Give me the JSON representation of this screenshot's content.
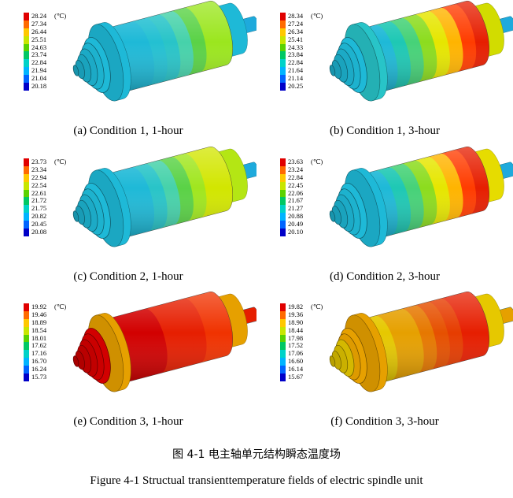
{
  "unit": "(℃)",
  "legend_colors": [
    "#e00000",
    "#ff6a00",
    "#ffc800",
    "#c8e600",
    "#5ad200",
    "#00c864",
    "#00d2c8",
    "#00b4ff",
    "#0064ff",
    "#0000c8"
  ],
  "panels": [
    {
      "caption": "(a) Condition 1, 1-hour",
      "legend": [
        "28.24",
        "27.34",
        "26.44",
        "25.51",
        "24.63",
        "23.74",
        "22.84",
        "21.94",
        "21.04",
        "20.18"
      ],
      "rings": [
        "#1eb9d7",
        "#1eb9d7",
        "#23c0d2",
        "#28c4c8",
        "#46d2aa",
        "#5ad246",
        "#9be61e",
        "#9be61e"
      ],
      "bearing_a": "#1eb9d7",
      "bearing_b": "#1eb9d7"
    },
    {
      "caption": "(b) Condition 1, 3-hour",
      "legend": [
        "28.34",
        "27.24",
        "26.34",
        "25.41",
        "24.33",
        "23.84",
        "22.84",
        "21.64",
        "21.14",
        "20.25"
      ],
      "rings": [
        "#1eb9d7",
        "#1ec8b4",
        "#46d278",
        "#8cdc1e",
        "#e6e600",
        "#ffb400",
        "#ff3c00",
        "#e61e00"
      ],
      "bearing_a": "#28c4c8",
      "bearing_b": "#d2dc00"
    },
    {
      "caption": "(c) Condition 2, 1-hour",
      "legend": [
        "23.73",
        "23.34",
        "22.94",
        "22.54",
        "22.61",
        "21.72",
        "21.75",
        "20.82",
        "20.45",
        "20.08"
      ],
      "rings": [
        "#1eb9d7",
        "#1eb9d7",
        "#28c4c8",
        "#46d2aa",
        "#5ad246",
        "#a0e61e",
        "#d2e600",
        "#d2e600"
      ],
      "bearing_a": "#1eb9d7",
      "bearing_b": "#b4e614"
    },
    {
      "caption": "(d) Condition 2, 3-hour",
      "legend": [
        "23.63",
        "23.24",
        "22.84",
        "22.45",
        "22.06",
        "21.67",
        "21.27",
        "20.88",
        "20.49",
        "20.10"
      ],
      "rings": [
        "#1eb9d7",
        "#1ec8b4",
        "#46d278",
        "#8cdc1e",
        "#e6e600",
        "#ffb400",
        "#ff3c00",
        "#e61e00"
      ],
      "bearing_a": "#1eb9d7",
      "bearing_b": "#e6dc00"
    },
    {
      "caption": "(e) Condition 3, 1-hour",
      "legend": [
        "19.92",
        "19.46",
        "18.89",
        "18.54",
        "18.01",
        "17.62",
        "17.16",
        "16.70",
        "16.24",
        "15.73"
      ],
      "rings": [
        "#d20000",
        "#d20000",
        "#d20000",
        "#e61e00",
        "#e61e00",
        "#e61e00",
        "#f03200",
        "#f03200"
      ],
      "bearing_a": "#e6a000",
      "bearing_b": "#e6a000"
    },
    {
      "caption": "(f) Condition 3, 3-hour",
      "legend": [
        "19.82",
        "19.36",
        "18.90",
        "18.44",
        "17.98",
        "17.52",
        "17.06",
        "16.60",
        "16.14",
        "15.67"
      ],
      "rings": [
        "#e6c800",
        "#e6a000",
        "#e6a000",
        "#e67800",
        "#e65000",
        "#e63c00",
        "#e61e00",
        "#e61e00"
      ],
      "bearing_a": "#e6a000",
      "bearing_b": "#e6c800"
    }
  ],
  "figure_caption_cn": "图 4-1  电主轴单元结构瞬态温度场",
  "figure_caption_en": "Figure 4-1 Structual transienttemperature fields of electric spindle unit"
}
